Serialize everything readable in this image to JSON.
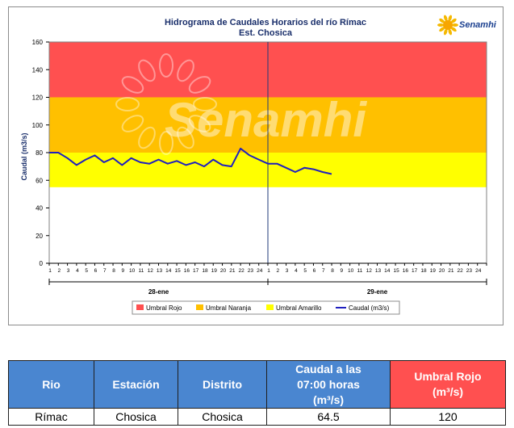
{
  "chart_data": {
    "type": "line",
    "title": "Hidrograma de Caudales Horarios del río Rímac",
    "subtitle": "Est. Chosica",
    "logo_text": "Senamhi",
    "watermark_text": "Senamhi",
    "ylabel": "Caudal  (m3/s)",
    "ylim": [
      0,
      160
    ],
    "yticks": [
      0,
      20,
      40,
      60,
      80,
      100,
      120,
      140,
      160
    ],
    "x_hour_ticks": [
      1,
      2,
      3,
      4,
      5,
      6,
      7,
      8,
      9,
      10,
      11,
      12,
      13,
      14,
      15,
      16,
      17,
      18,
      19,
      20,
      21,
      22,
      23,
      24,
      1,
      2,
      3,
      4,
      5,
      6,
      7,
      8,
      9,
      10,
      11,
      12,
      13,
      14,
      15,
      16,
      17,
      18,
      19,
      20,
      21,
      22,
      23,
      24
    ],
    "days": [
      "28-ene",
      "29-ene"
    ],
    "bands": [
      {
        "name": "Umbral Rojo",
        "from": 120,
        "to": 160,
        "color": "#ff5050"
      },
      {
        "name": "Umbral Naranja",
        "from": 80,
        "to": 120,
        "color": "#ffc000"
      },
      {
        "name": "Umbral Amarillo",
        "from": 55,
        "to": 80,
        "color": "#ffff00"
      }
    ],
    "series": [
      {
        "name": "Caudal (m3/s)",
        "color": "#1f1fbf",
        "x": [
          0,
          1,
          2,
          3,
          4,
          5,
          6,
          7,
          8,
          9,
          10,
          11,
          12,
          13,
          14,
          15,
          16,
          17,
          18,
          19,
          20,
          21,
          22,
          23,
          24,
          25,
          26,
          27,
          28,
          29,
          30,
          31
        ],
        "values": [
          80,
          80,
          76,
          71,
          75,
          78,
          73,
          76,
          71,
          76,
          73,
          72,
          75,
          72,
          74,
          71,
          73,
          70,
          75,
          71,
          70,
          83,
          78,
          75,
          72,
          72,
          69,
          66,
          69,
          68,
          66,
          64.5
        ]
      }
    ],
    "legend_placement": "bottom",
    "grid": false
  },
  "table": {
    "headers": [
      "Rio",
      "Estación",
      "Distrito",
      "Caudal a las 07:00 horas (m³/s)",
      "Umbral Rojo (m³/s)"
    ],
    "header_caudal_lines": [
      "Caudal a las",
      "07:00 horas",
      "(m³/s)"
    ],
    "header_umbral_lines": [
      "Umbral Rojo",
      "(m³/s)"
    ],
    "row": [
      "Rímac",
      "Chosica",
      "Chosica",
      "64.5",
      "120"
    ]
  }
}
